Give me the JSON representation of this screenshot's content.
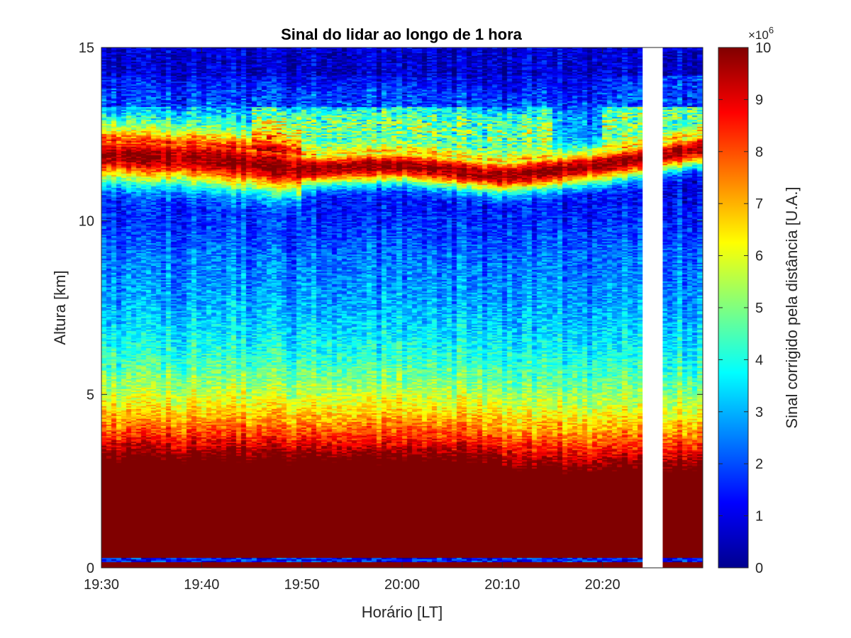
{
  "chart_data": {
    "type": "heatmap",
    "title": "Sinal do lidar ao longo de 1 hora",
    "xlabel": "Horário [LT]",
    "ylabel": "Altura [km]",
    "x_range_minutes": [
      0,
      60
    ],
    "x_ticks": [
      {
        "minute": 0,
        "label": "19:30"
      },
      {
        "minute": 10,
        "label": "19:40"
      },
      {
        "minute": 20,
        "label": "19:50"
      },
      {
        "minute": 30,
        "label": "20:00"
      },
      {
        "minute": 40,
        "label": "20:10"
      },
      {
        "minute": 50,
        "label": "20:20"
      }
    ],
    "ylim": [
      0,
      15
    ],
    "y_ticks": [
      0,
      5,
      10,
      15
    ],
    "data_gap_minutes": [
      54.0,
      56.0
    ],
    "colorbar": {
      "label": "Sinal corrigido pela distância [U.A.]",
      "exponent_label": "×10",
      "exponent_power": "6",
      "range": [
        0,
        10
      ],
      "ticks": [
        0,
        1,
        2,
        3,
        4,
        5,
        6,
        7,
        8,
        9,
        10
      ],
      "colormap": "jet"
    },
    "features": {
      "saturated_layer_top_km": [
        [
          0,
          3.0
        ],
        [
          10,
          2.95
        ],
        [
          20,
          2.95
        ],
        [
          30,
          2.95
        ],
        [
          38,
          2.9
        ],
        [
          42,
          2.6
        ],
        [
          50,
          2.6
        ],
        [
          60,
          2.7
        ]
      ],
      "cirrus_layer_center_km": [
        [
          0,
          11.9
        ],
        [
          10,
          11.8
        ],
        [
          20,
          11.5
        ],
        [
          30,
          11.6
        ],
        [
          40,
          11.3
        ],
        [
          50,
          11.6
        ],
        [
          60,
          12.1
        ]
      ],
      "surface_line_km": 0.25,
      "colors": {
        "saturation": "#7f0000",
        "background": "#00008f"
      }
    }
  }
}
